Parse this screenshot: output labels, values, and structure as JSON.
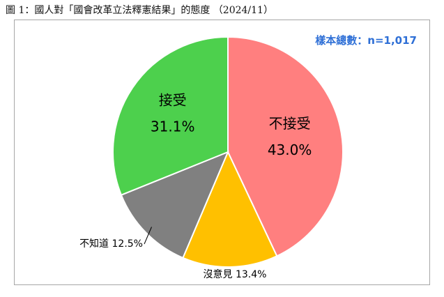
{
  "caption": "圖 1：國人對「國會改革立法釋憲結果」的態度 （2024/11）",
  "sample_text": "樣本總數：n=1,017",
  "colors": {
    "sample_text": "#2e6fd6",
    "slice_stroke": "#ffffff",
    "border": "#a6a6a6"
  },
  "chart_data": {
    "type": "pie",
    "title": "",
    "start_angle_deg": 0,
    "direction": "clockwise",
    "slices": [
      {
        "name": "不接受",
        "value": 43.0,
        "value_label": "43.0%",
        "color": "#ff7f7f",
        "label_position": "inside"
      },
      {
        "name": "沒意見",
        "value": 13.4,
        "value_label": "13.4%",
        "color": "#ffc000",
        "label_position": "outside"
      },
      {
        "name": "不知道",
        "value": 12.5,
        "value_label": "12.5%",
        "color": "#808080",
        "label_position": "outside"
      },
      {
        "name": "接受",
        "value": 31.1,
        "value_label": "31.1%",
        "color": "#4dd04d",
        "label_position": "inside"
      }
    ],
    "legend": "none"
  }
}
